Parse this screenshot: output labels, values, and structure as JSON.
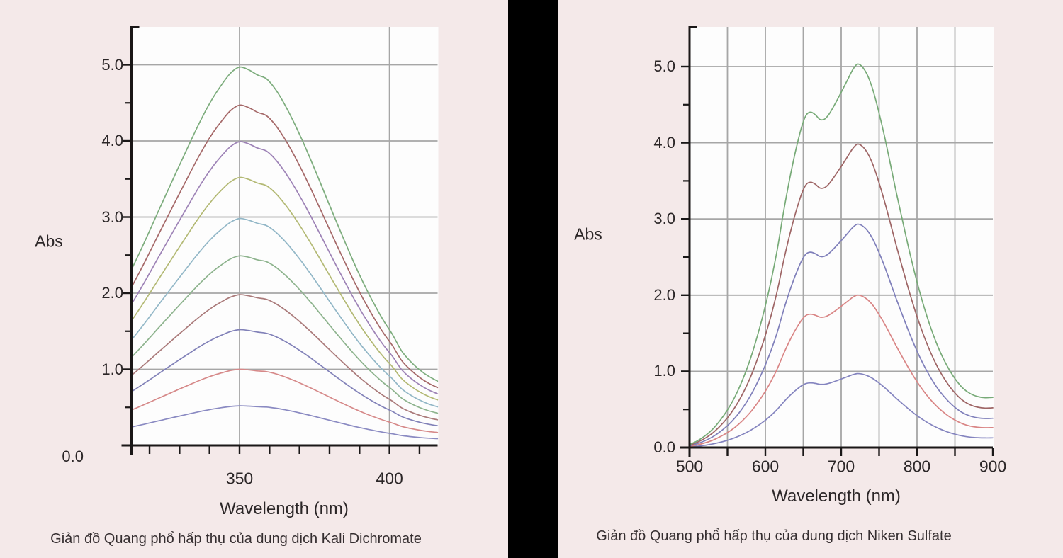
{
  "page": {
    "background_color": "#f4e9e9",
    "divider_color": "#000000",
    "plot_bg": "#fdfdfd",
    "grid_color": "#a6a6a6",
    "axis_color": "#1a1717",
    "text_color": "#2b2627"
  },
  "charts": [
    {
      "name": "kali-dichromate-spectrum",
      "caption": "Giản đồ Quang phổ hấp thụ của dung dịch Kali Dichromate",
      "chart_data": {
        "type": "line",
        "title": "Giản đồ Quang phổ hấp thụ của dung dịch Kali Dichromate",
        "xlabel": "Wavelength (nm)",
        "ylabel": "Abs",
        "xlim": [
          314,
          416
        ],
        "ylim": [
          0,
          5.5
        ],
        "x_unit": "nm",
        "grid": true,
        "x_ticks": [
          {
            "value": 320,
            "label": ""
          },
          {
            "value": 330,
            "label": ""
          },
          {
            "value": 340,
            "label": ""
          },
          {
            "value": 350,
            "label": "350"
          },
          {
            "value": 360,
            "label": ""
          },
          {
            "value": 370,
            "label": ""
          },
          {
            "value": 380,
            "label": ""
          },
          {
            "value": 390,
            "label": ""
          },
          {
            "value": 400,
            "label": "400"
          },
          {
            "value": 410,
            "label": ""
          }
        ],
        "x_gridlines": [
          350,
          400
        ],
        "y_ticks": [
          {
            "value": 0,
            "label": "0.0"
          },
          {
            "value": 1,
            "label": "1.0"
          },
          {
            "value": 2,
            "label": "2.0"
          },
          {
            "value": 3,
            "label": "3.0"
          },
          {
            "value": 4,
            "label": "4.0"
          },
          {
            "value": 5,
            "label": "5.0"
          }
        ],
        "y_minor_ticks": [
          0.5,
          1.5,
          2.5,
          3.5,
          4.5
        ],
        "y_gridlines": [
          1,
          2,
          3,
          4,
          5
        ],
        "peak_wavelength_nm": 350,
        "profile_x": [
          314,
          317,
          320,
          323,
          326,
          329,
          332,
          335,
          338,
          341,
          344,
          347,
          350,
          353,
          356,
          359,
          362,
          365,
          368,
          371,
          374,
          377,
          380,
          383,
          386,
          389,
          392,
          395,
          398,
          401,
          404,
          407,
          410,
          413,
          416
        ],
        "profile_frac": [
          0.465,
          0.515,
          0.567,
          0.62,
          0.672,
          0.724,
          0.775,
          0.826,
          0.874,
          0.917,
          0.953,
          0.984,
          1.0,
          0.993,
          0.979,
          0.969,
          0.941,
          0.902,
          0.856,
          0.805,
          0.75,
          0.693,
          0.635,
          0.578,
          0.522,
          0.468,
          0.418,
          0.372,
          0.33,
          0.293,
          0.25,
          0.222,
          0.2,
          0.183,
          0.17
        ],
        "series": [
          {
            "name": "peak-0.5",
            "peak_abs": 0.52,
            "color": "#8a8ac2"
          },
          {
            "name": "peak-1.0",
            "peak_abs": 1.0,
            "color": "#d68989"
          },
          {
            "name": "peak-1.5",
            "peak_abs": 1.52,
            "color": "#8181b8"
          },
          {
            "name": "peak-2.0",
            "peak_abs": 1.98,
            "color": "#aa7a7a"
          },
          {
            "name": "peak-2.5",
            "peak_abs": 2.49,
            "color": "#8db38d"
          },
          {
            "name": "peak-3.0",
            "peak_abs": 2.98,
            "color": "#92b7c7"
          },
          {
            "name": "peak-3.5",
            "peak_abs": 3.52,
            "color": "#b3b974"
          },
          {
            "name": "peak-4.0",
            "peak_abs": 3.99,
            "color": "#9d82b6"
          },
          {
            "name": "peak-4.5",
            "peak_abs": 4.47,
            "color": "#a56868"
          },
          {
            "name": "peak-5.0",
            "peak_abs": 4.97,
            "color": "#7cac7c"
          }
        ]
      }
    },
    {
      "name": "niken-sulfate-spectrum",
      "caption": "Giản đồ Quang phổ hấp thụ của dung dịch Niken Sulfate",
      "chart_data": {
        "type": "line",
        "title": "Giản đồ Quang phổ hấp thụ của dung dịch Niken Sulfate",
        "xlabel": "Wavelength (nm)",
        "ylabel": "Abs",
        "xlim": [
          500,
          900
        ],
        "ylim": [
          0,
          5.5
        ],
        "x_unit": "nm",
        "grid": true,
        "x_ticks": [
          {
            "value": 500,
            "label": "500"
          },
          {
            "value": 550,
            "label": ""
          },
          {
            "value": 600,
            "label": "600"
          },
          {
            "value": 650,
            "label": ""
          },
          {
            "value": 700,
            "label": "700"
          },
          {
            "value": 750,
            "label": ""
          },
          {
            "value": 800,
            "label": "800"
          },
          {
            "value": 850,
            "label": ""
          },
          {
            "value": 900,
            "label": "900"
          }
        ],
        "x_gridlines": [
          550,
          600,
          650,
          700,
          750,
          800,
          850
        ],
        "y_ticks": [
          {
            "value": 0,
            "label": "0.0"
          },
          {
            "value": 1,
            "label": "1.0"
          },
          {
            "value": 2,
            "label": "2.0"
          },
          {
            "value": 3,
            "label": "3.0"
          },
          {
            "value": 4,
            "label": "4.0"
          },
          {
            "value": 5,
            "label": "5.0"
          }
        ],
        "y_minor_ticks": [
          0.5,
          1.5,
          2.5,
          3.5,
          4.5
        ],
        "y_gridlines": [
          1,
          2,
          3,
          4,
          5
        ],
        "peak_wavelength_nm": 721,
        "shoulder_wavelength_nm": 660,
        "profile_x": [
          500,
          510,
          520,
          530,
          540,
          550,
          560,
          570,
          580,
          590,
          600,
          608,
          616,
          624,
          632,
          640,
          648,
          654,
          660,
          666,
          672,
          678,
          684,
          692,
          700,
          708,
          715,
          721,
          727,
          734,
          741,
          748,
          756,
          764,
          772,
          780,
          790,
          800,
          810,
          820,
          830,
          840,
          850,
          860,
          870,
          880,
          890,
          900
        ],
        "profile_frac": [
          0.008,
          0.017,
          0.03,
          0.047,
          0.07,
          0.098,
          0.133,
          0.177,
          0.23,
          0.295,
          0.37,
          0.44,
          0.52,
          0.615,
          0.7,
          0.775,
          0.838,
          0.868,
          0.875,
          0.868,
          0.856,
          0.857,
          0.87,
          0.897,
          0.927,
          0.958,
          0.985,
          1.0,
          0.995,
          0.974,
          0.938,
          0.888,
          0.822,
          0.748,
          0.672,
          0.6,
          0.512,
          0.432,
          0.362,
          0.302,
          0.252,
          0.212,
          0.18,
          0.156,
          0.141,
          0.133,
          0.13,
          0.131
        ],
        "series": [
          {
            "name": "peak-1.0",
            "peak_abs": 0.97,
            "color": "#8484bf"
          },
          {
            "name": "peak-2.0",
            "peak_abs": 2.0,
            "color": "#d98585"
          },
          {
            "name": "peak-3.0",
            "peak_abs": 2.93,
            "color": "#7f7fba"
          },
          {
            "name": "peak-4.0",
            "peak_abs": 3.98,
            "color": "#9e6565"
          },
          {
            "name": "peak-5.0",
            "peak_abs": 5.03,
            "color": "#77aa77"
          }
        ]
      }
    }
  ]
}
